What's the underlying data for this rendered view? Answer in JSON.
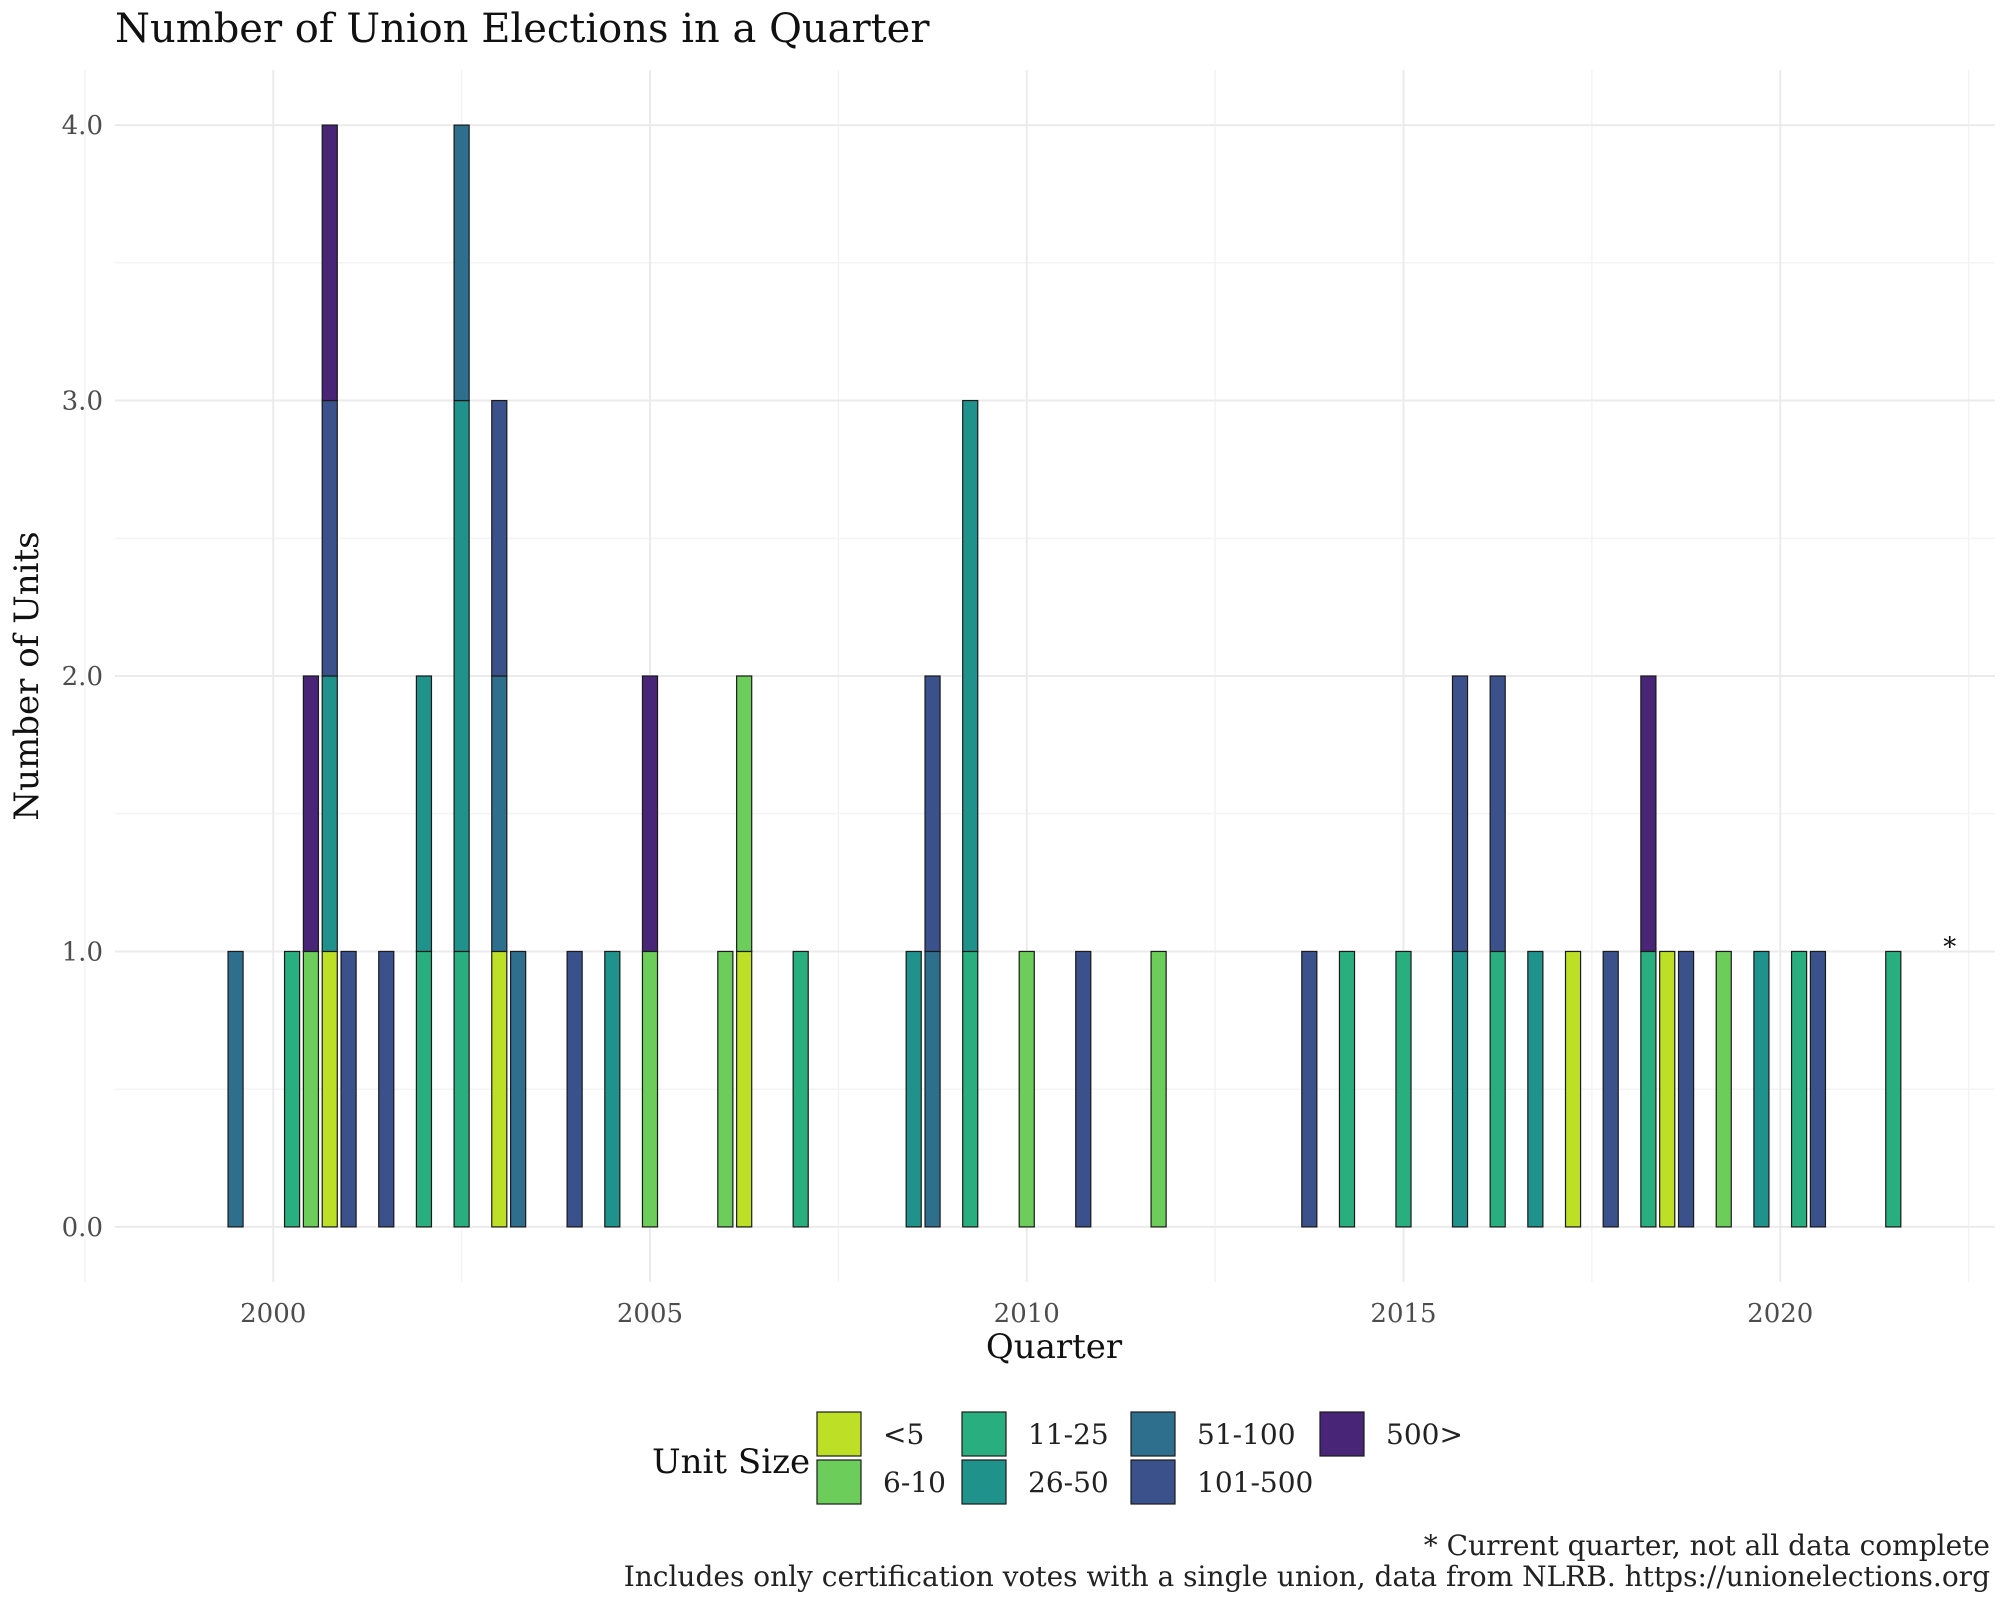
{
  "chart_data": {
    "type": "bar",
    "stacked": true,
    "title": "Number of Union Elections in a Quarter",
    "xlabel": "Quarter",
    "ylabel": "Number of Units",
    "xlim": [
      1997.9,
      2022.85
    ],
    "ylim": [
      -0.2,
      4.2
    ],
    "x_ticks": [
      2000,
      2005,
      2010,
      2015,
      2020
    ],
    "y_ticks": [
      0.0,
      1.0,
      2.0,
      3.0,
      4.0
    ],
    "y_tick_labels": [
      "0.0",
      "1.0",
      "2.0",
      "3.0",
      "4.0"
    ],
    "grid": true,
    "legend_title": "Unit Size",
    "legend_position": "bottom",
    "series": [
      {
        "name": "<5",
        "color": "#bddf26"
      },
      {
        "name": "6-10",
        "color": "#6ccd5a"
      },
      {
        "name": "11-25",
        "color": "#29af7f"
      },
      {
        "name": "26-50",
        "color": "#20928c"
      },
      {
        "name": "51-100",
        "color": "#2e6f8e"
      },
      {
        "name": "101-500",
        "color": "#3b518b"
      },
      {
        "name": "500>",
        "color": "#482576"
      }
    ],
    "bar_width": 0.2,
    "bars": [
      {
        "x": 1999.5,
        "segments": [
          {
            "series": "51-100",
            "value": 1
          }
        ]
      },
      {
        "x": 2000.25,
        "segments": [
          {
            "series": "11-25",
            "value": 1
          }
        ]
      },
      {
        "x": 2000.5,
        "segments": [
          {
            "series": "6-10",
            "value": 1
          },
          {
            "series": "500>",
            "value": 1
          }
        ]
      },
      {
        "x": 2000.75,
        "segments": [
          {
            "series": "<5",
            "value": 1
          },
          {
            "series": "26-50",
            "value": 1
          },
          {
            "series": "101-500",
            "value": 1
          },
          {
            "series": "500>",
            "value": 1
          }
        ]
      },
      {
        "x": 2001.0,
        "segments": [
          {
            "series": "101-500",
            "value": 1
          }
        ]
      },
      {
        "x": 2001.5,
        "segments": [
          {
            "series": "101-500",
            "value": 1
          }
        ]
      },
      {
        "x": 2002.0,
        "segments": [
          {
            "series": "11-25",
            "value": 1
          },
          {
            "series": "26-50",
            "value": 1
          }
        ]
      },
      {
        "x": 2002.5,
        "segments": [
          {
            "series": "11-25",
            "value": 1
          },
          {
            "series": "26-50",
            "value": 2
          },
          {
            "series": "51-100",
            "value": 1
          }
        ]
      },
      {
        "x": 2003.0,
        "segments": [
          {
            "series": "<5",
            "value": 1
          },
          {
            "series": "51-100",
            "value": 1
          },
          {
            "series": "101-500",
            "value": 1
          }
        ]
      },
      {
        "x": 2003.25,
        "segments": [
          {
            "series": "51-100",
            "value": 1
          }
        ]
      },
      {
        "x": 2004.0,
        "segments": [
          {
            "series": "101-500",
            "value": 1
          }
        ]
      },
      {
        "x": 2004.5,
        "segments": [
          {
            "series": "26-50",
            "value": 1
          }
        ]
      },
      {
        "x": 2005.0,
        "segments": [
          {
            "series": "6-10",
            "value": 1
          },
          {
            "series": "500>",
            "value": 1
          }
        ]
      },
      {
        "x": 2006.0,
        "segments": [
          {
            "series": "6-10",
            "value": 1
          }
        ]
      },
      {
        "x": 2006.25,
        "segments": [
          {
            "series": "<5",
            "value": 1
          },
          {
            "series": "6-10",
            "value": 1
          }
        ]
      },
      {
        "x": 2007.0,
        "segments": [
          {
            "series": "11-25",
            "value": 1
          }
        ]
      },
      {
        "x": 2008.5,
        "segments": [
          {
            "series": "26-50",
            "value": 1
          }
        ]
      },
      {
        "x": 2008.75,
        "segments": [
          {
            "series": "51-100",
            "value": 1
          },
          {
            "series": "101-500",
            "value": 1
          }
        ]
      },
      {
        "x": 2009.25,
        "segments": [
          {
            "series": "11-25",
            "value": 1
          },
          {
            "series": "26-50",
            "value": 2
          }
        ]
      },
      {
        "x": 2010.0,
        "segments": [
          {
            "series": "6-10",
            "value": 1
          }
        ]
      },
      {
        "x": 2010.75,
        "segments": [
          {
            "series": "101-500",
            "value": 1
          }
        ]
      },
      {
        "x": 2011.75,
        "segments": [
          {
            "series": "6-10",
            "value": 1
          }
        ]
      },
      {
        "x": 2013.75,
        "segments": [
          {
            "series": "101-500",
            "value": 1
          }
        ]
      },
      {
        "x": 2014.25,
        "segments": [
          {
            "series": "11-25",
            "value": 1
          }
        ]
      },
      {
        "x": 2015.0,
        "segments": [
          {
            "series": "11-25",
            "value": 1
          }
        ]
      },
      {
        "x": 2015.75,
        "segments": [
          {
            "series": "26-50",
            "value": 1
          },
          {
            "series": "101-500",
            "value": 1
          }
        ]
      },
      {
        "x": 2016.25,
        "segments": [
          {
            "series": "11-25",
            "value": 1
          },
          {
            "series": "101-500",
            "value": 1
          }
        ]
      },
      {
        "x": 2016.75,
        "segments": [
          {
            "series": "26-50",
            "value": 1
          }
        ]
      },
      {
        "x": 2017.25,
        "segments": [
          {
            "series": "<5",
            "value": 1
          }
        ]
      },
      {
        "x": 2017.75,
        "segments": [
          {
            "series": "101-500",
            "value": 1
          }
        ]
      },
      {
        "x": 2018.25,
        "segments": [
          {
            "series": "11-25",
            "value": 1
          },
          {
            "series": "500>",
            "value": 1
          }
        ]
      },
      {
        "x": 2018.5,
        "segments": [
          {
            "series": "<5",
            "value": 1
          }
        ]
      },
      {
        "x": 2018.75,
        "segments": [
          {
            "series": "101-500",
            "value": 1
          }
        ]
      },
      {
        "x": 2019.25,
        "segments": [
          {
            "series": "6-10",
            "value": 1
          }
        ]
      },
      {
        "x": 2019.75,
        "segments": [
          {
            "series": "26-50",
            "value": 1
          }
        ]
      },
      {
        "x": 2020.25,
        "segments": [
          {
            "series": "11-25",
            "value": 1
          }
        ]
      },
      {
        "x": 2020.5,
        "segments": [
          {
            "series": "101-500",
            "value": 1
          }
        ]
      },
      {
        "x": 2021.5,
        "segments": [
          {
            "series": "11-25",
            "value": 1
          }
        ]
      }
    ],
    "annotation": {
      "text": "*",
      "x": 2022.25,
      "y": 1.0
    },
    "caption_lines": [
      "* Current quarter, not all data complete",
      "Includes only certification votes with a single union, data from NLRB. https://unionelections.org"
    ]
  }
}
